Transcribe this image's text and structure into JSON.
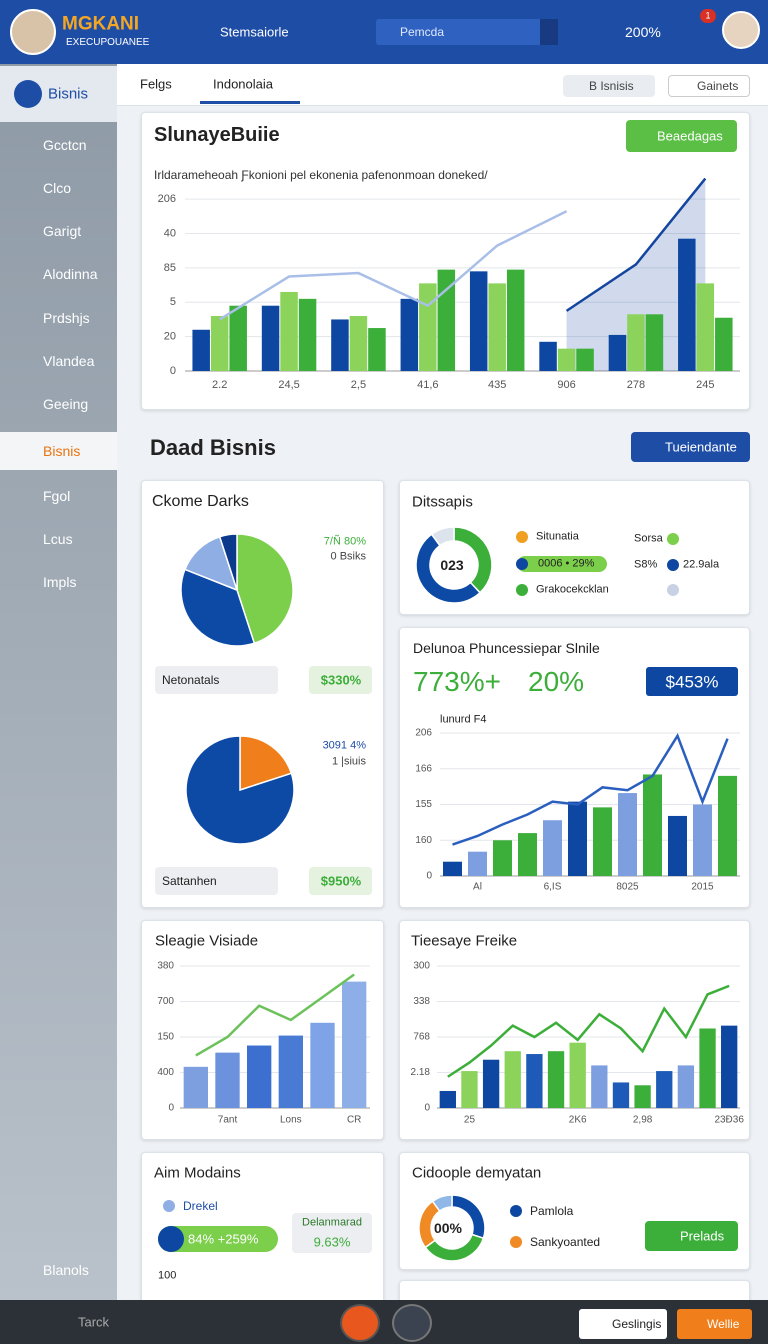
{
  "header": {
    "logo": "MGKANI",
    "logo_sub": "EXECUPOUANEE",
    "nav": "Stemsaiorle",
    "search": "Pemcda",
    "zoom": "200%",
    "badge": "1"
  },
  "sidebar": {
    "top": "Bisnis",
    "items": [
      "Gcctcn",
      "Clco",
      "Garigt",
      "Alodinna",
      "Prdshjs",
      "Vlandea",
      "Geeing",
      "Bisnis",
      "Fgol",
      "Lcus",
      "Impls"
    ],
    "bottom": "Blanols"
  },
  "tabs": {
    "items": [
      "Felgs",
      "Indonolaia"
    ],
    "buttons": [
      "B Isnisis",
      "Gainets"
    ]
  },
  "main": {
    "button": "Beaedagas",
    "section": "Daad Bisnis",
    "section_button": "Tueiendante"
  },
  "cards": {
    "ckome": {
      "title": "Ckome Darks",
      "pie1_labels": [
        "7/Ñ 80%",
        "0 Bsiks"
      ],
      "row1": "Netonatals",
      "row1_value": "$330%",
      "pie2_labels": [
        "3091 4%",
        "1 |siuis"
      ],
      "row2": "Sattanhen",
      "row2_value": "$950%"
    },
    "ditssapis": {
      "title": "Ditssapis",
      "center": "023",
      "legend": [
        "Situnatia",
        "0006 • 29%",
        "Grakocekcklan"
      ],
      "right": [
        "Sorsa",
        "S8%",
        "22.9ala"
      ]
    },
    "delunoa": {
      "title": "Delunoa Phuncessiepar Slnile",
      "stat1": "773%+",
      "stat2": "20%",
      "badge": "$453%"
    },
    "aim": {
      "title": "Aim Modains",
      "legend": "Drekel",
      "progress": "84% +259%",
      "box_title": "Delanmarad",
      "box_value": "9.63%",
      "axis": "100"
    },
    "cidoople": {
      "title": "Cidoople demyatan",
      "center": "00%",
      "legend": [
        "Pamlola",
        "Sankyoanted"
      ],
      "button": "Prelads"
    }
  },
  "bottom": {
    "label": "Tarck",
    "buttons": [
      "Geslingis",
      "Wellie"
    ]
  },
  "chart_data": [
    {
      "type": "bar",
      "title": "SlunayeBuiie",
      "subtitle": "Irldarameheoah Ƒkonioni pel ekonenia pafenonmoan doneked/",
      "categories": [
        "2.2",
        "24,5",
        "2,5",
        "41,6",
        "435",
        "906",
        "278",
        "245"
      ],
      "ylim": [
        0,
        110
      ],
      "yticks": [
        0,
        20,
        {
          "value": 40,
          "label": "5"
        },
        {
          "value": 60,
          "label": "85"
        },
        {
          "value": 80,
          "label": "40"
        },
        {
          "value": 100,
          "label": "206"
        }
      ],
      "grid": true,
      "series": [
        {
          "type": "area",
          "color": "#1446a0",
          "values": [
            null,
            null,
            null,
            null,
            null,
            35,
            62,
            112
          ]
        },
        {
          "type": "bar",
          "color": "#0d47a1",
          "values": [
            24,
            38,
            30,
            42,
            58,
            17,
            21,
            77
          ]
        },
        {
          "type": "bar",
          "color": "#8bd35a",
          "values": [
            32,
            46,
            32,
            51,
            51,
            13,
            33,
            51
          ]
        },
        {
          "type": "bar",
          "color": "#3cae3a",
          "values": [
            38,
            42,
            25,
            59,
            59,
            13,
            33,
            31
          ]
        },
        {
          "type": "line",
          "color": "#a9bfe8",
          "values": [
            30,
            55,
            57,
            38,
            73,
            93,
            null,
            null
          ]
        }
      ]
    },
    {
      "type": "pie",
      "values": [
        45,
        36,
        14,
        5
      ],
      "colors": [
        "#7ccf4a",
        "#0d4aa6",
        "#8faee3",
        "#0b3a8c"
      ]
    },
    {
      "type": "pie",
      "values": [
        20,
        80
      ],
      "colors": [
        "#f07f1b",
        "#0d4aa6"
      ]
    },
    {
      "type": "donut",
      "values": [
        38,
        52,
        10
      ],
      "colors": [
        "#3cae3a",
        "#0d4aa6",
        "#dde3ec"
      ]
    },
    {
      "type": "bar",
      "subtitle": "lunurd F4",
      "categories": [
        null,
        "Al",
        null,
        null,
        "6,IS",
        null,
        null,
        "8025",
        null,
        null,
        "2015",
        null
      ],
      "ylim": [
        0,
        100
      ],
      "yticks": [
        0,
        {
          "value": 25,
          "label": "160"
        },
        {
          "value": 50,
          "label": "155"
        },
        {
          "value": 75,
          "label": "166"
        },
        {
          "value": 100,
          "label": "206"
        }
      ],
      "grid": true,
      "series": [
        {
          "type": "bar",
          "colors": [
            "#0d47a1",
            "#7d9fe0",
            "#3cae3a",
            "#3cae3a",
            "#7d9fe0",
            "#0d47a1",
            "#3cae3a",
            "#7d9fe0",
            "#3cae3a",
            "#0d47a1",
            "#7d9fe0",
            "#3cae3a"
          ],
          "values": [
            10,
            17,
            25,
            30,
            39,
            52,
            48,
            58,
            71,
            42,
            50,
            70
          ]
        },
        {
          "type": "line",
          "color": "#2a5fbf",
          "values": [
            22,
            28,
            36,
            43,
            52,
            50,
            62,
            60,
            70,
            98,
            52,
            96
          ]
        }
      ]
    },
    {
      "type": "bar",
      "title": "Sleagie Visiade",
      "categories": [
        null,
        "7ant",
        null,
        "Lons",
        null,
        "CR"
      ],
      "ylim": [
        0,
        100
      ],
      "yticks": [
        0,
        {
          "value": 25,
          "label": "400"
        },
        {
          "value": 50,
          "label": "150"
        },
        {
          "value": 75,
          "label": "700"
        },
        {
          "value": 100,
          "label": "380"
        }
      ],
      "grid": true,
      "series": [
        {
          "type": "bar",
          "colors": [
            "#7d9fe0",
            "#6c92de",
            "#3c6fcf",
            "#4a7bd4",
            "#7ea3e6",
            "#8eaee8"
          ],
          "values": [
            29,
            39,
            44,
            51,
            60,
            89
          ]
        },
        {
          "type": "line",
          "color": "#6cc25a",
          "values": [
            37,
            50,
            72,
            62,
            78,
            94
          ]
        }
      ]
    },
    {
      "type": "bar",
      "title": "Tieesaye Freike",
      "categories": [
        null,
        "25",
        null,
        null,
        null,
        null,
        "2K6",
        null,
        null,
        "2,98",
        null,
        null,
        null,
        "23Ð36"
      ],
      "ylim": [
        0,
        100
      ],
      "yticks": [
        0,
        {
          "value": 25,
          "label": "2.18"
        },
        {
          "value": 50,
          "label": "768"
        },
        {
          "value": 75,
          "label": "338"
        },
        {
          "value": 100,
          "label": "300"
        }
      ],
      "grid": true,
      "series": [
        {
          "type": "bar",
          "colors": [
            "#0d47a1",
            "#8bd35a",
            "#0d47a1",
            "#8bd35a",
            "#1e5bb8",
            "#3cae3a",
            "#8bd35a",
            "#7d9fe0",
            "#1e5bb8",
            "#3cae3a",
            "#1e5bb8",
            "#7d9fe0",
            "#3cae3a",
            "#0d47a1"
          ],
          "values": [
            12,
            26,
            34,
            40,
            38,
            40,
            46,
            30,
            18,
            16,
            26,
            30,
            56,
            58
          ]
        },
        {
          "type": "line",
          "color": "#3cae3a",
          "values": [
            22,
            32,
            44,
            58,
            50,
            60,
            48,
            66,
            56,
            40,
            70,
            50,
            80,
            86
          ]
        }
      ]
    },
    {
      "type": "donut",
      "values": [
        30,
        35,
        25,
        10
      ],
      "colors": [
        "#0d4aa6",
        "#3cae3a",
        "#f08a24",
        "#8fb7e8"
      ]
    }
  ]
}
